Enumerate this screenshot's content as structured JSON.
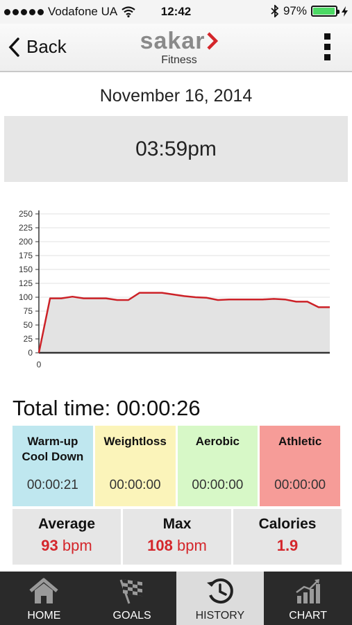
{
  "status": {
    "carrier": "Vodafone UA",
    "time": "12:42",
    "battery": "97%",
    "battery_level": 0.97
  },
  "nav": {
    "back_label": "Back",
    "logo_text": "sakar",
    "logo_sub": "Fitness"
  },
  "session": {
    "date": "November 16, 2014",
    "time": "03:59pm"
  },
  "chart_data": {
    "type": "area",
    "x": [
      0,
      1,
      2,
      3,
      4,
      5,
      6,
      7,
      8,
      9,
      10,
      11,
      12,
      13,
      14,
      15,
      16,
      17,
      18,
      19,
      20,
      21,
      22,
      23,
      24,
      25,
      26
    ],
    "y": [
      0,
      98,
      98,
      101,
      98,
      98,
      98,
      95,
      95,
      108,
      108,
      108,
      105,
      102,
      100,
      99,
      95,
      96,
      96,
      96,
      96,
      97,
      96,
      92,
      92,
      82,
      82
    ],
    "x_tick_labels": [
      "0"
    ],
    "y_ticks": [
      0,
      25,
      50,
      75,
      100,
      125,
      150,
      175,
      200,
      225,
      250
    ],
    "ylim": [
      0,
      250
    ],
    "grid": true,
    "colors": {
      "line": "#cc2127",
      "fill": "#e3e3e3"
    }
  },
  "total": {
    "label": "Total time:",
    "value": "00:00:26"
  },
  "zones": [
    {
      "name": "Warm-up\nCool Down",
      "time": "00:00:21",
      "color": "#bfe7ef"
    },
    {
      "name": "Weightloss",
      "time": "00:00:00",
      "color": "#fbf4ba"
    },
    {
      "name": "Aerobic",
      "time": "00:00:00",
      "color": "#d7f8c7"
    },
    {
      "name": "Athletic",
      "time": "00:00:00",
      "color": "#f69c98"
    }
  ],
  "stats": {
    "average": {
      "label": "Average",
      "value": "93",
      "unit": "bpm"
    },
    "max": {
      "label": "Max",
      "value": "108",
      "unit": "bpm"
    },
    "calories": {
      "label": "Calories",
      "value": "1.9"
    }
  },
  "tabs": [
    {
      "label": "HOME",
      "icon": "home-icon"
    },
    {
      "label": "GOALS",
      "icon": "checkered-flag-icon"
    },
    {
      "label": "HISTORY",
      "icon": "history-icon",
      "active": true
    },
    {
      "label": "CHART",
      "icon": "chart-icon"
    }
  ]
}
